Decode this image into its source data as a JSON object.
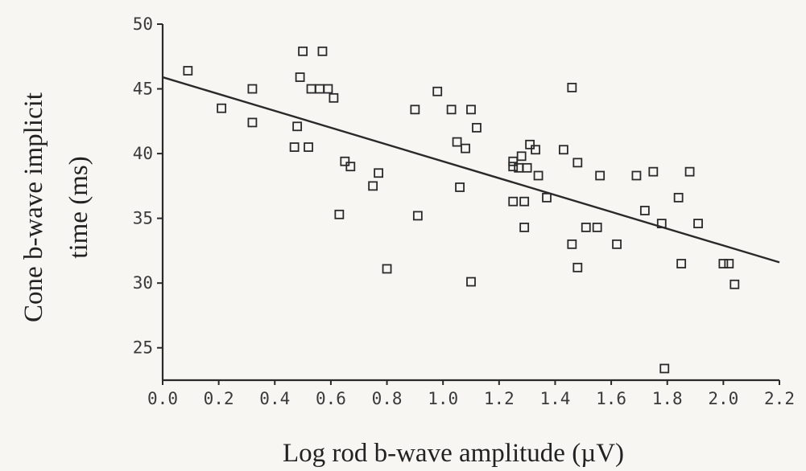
{
  "chart_data": {
    "type": "scatter",
    "xlabel": "Log rod b-wave amplitude (µV)",
    "ylabel": [
      "Cone b-wave implicit",
      "time (ms)"
    ],
    "xlim": [
      0.0,
      2.2
    ],
    "ylim": [
      22.5,
      50
    ],
    "xticks": [
      "0.0",
      "0.2",
      "0.4",
      "0.6",
      "0.8",
      "1.0",
      "1.2",
      "1.4",
      "1.6",
      "1.8",
      "2.0",
      "2.2"
    ],
    "yticks": [
      "25",
      "30",
      "35",
      "40",
      "45",
      "50"
    ],
    "grid": false,
    "legend": "none",
    "marker": "open-square",
    "colors": {
      "ink": "#2a2a2a",
      "background": "#f7f6f3"
    },
    "trendline": {
      "x": [
        0.0,
        2.2
      ],
      "y": [
        45.9,
        31.6
      ]
    },
    "points": [
      [
        0.09,
        46.4
      ],
      [
        0.21,
        43.5
      ],
      [
        0.32,
        45.0
      ],
      [
        0.32,
        42.4
      ],
      [
        0.47,
        40.5
      ],
      [
        0.48,
        42.1
      ],
      [
        0.49,
        45.9
      ],
      [
        0.5,
        47.9
      ],
      [
        0.52,
        40.5
      ],
      [
        0.53,
        45.0
      ],
      [
        0.56,
        45.0
      ],
      [
        0.57,
        47.9
      ],
      [
        0.59,
        45.0
      ],
      [
        0.61,
        44.3
      ],
      [
        0.63,
        35.3
      ],
      [
        0.65,
        39.4
      ],
      [
        0.67,
        39.0
      ],
      [
        0.75,
        37.5
      ],
      [
        0.77,
        38.5
      ],
      [
        0.8,
        31.1
      ],
      [
        0.9,
        43.4
      ],
      [
        0.91,
        35.2
      ],
      [
        0.98,
        44.8
      ],
      [
        1.03,
        43.4
      ],
      [
        1.05,
        40.9
      ],
      [
        1.06,
        37.4
      ],
      [
        1.08,
        40.4
      ],
      [
        1.1,
        43.4
      ],
      [
        1.1,
        30.1
      ],
      [
        1.12,
        42.0
      ],
      [
        1.25,
        39.4
      ],
      [
        1.25,
        39.0
      ],
      [
        1.25,
        36.3
      ],
      [
        1.27,
        38.9
      ],
      [
        1.28,
        39.8
      ],
      [
        1.29,
        36.3
      ],
      [
        1.29,
        34.3
      ],
      [
        1.3,
        38.9
      ],
      [
        1.31,
        40.7
      ],
      [
        1.33,
        40.3
      ],
      [
        1.34,
        38.3
      ],
      [
        1.37,
        36.6
      ],
      [
        1.43,
        40.3
      ],
      [
        1.46,
        33.0
      ],
      [
        1.46,
        45.1
      ],
      [
        1.48,
        39.3
      ],
      [
        1.48,
        31.2
      ],
      [
        1.51,
        34.3
      ],
      [
        1.55,
        34.3
      ],
      [
        1.56,
        38.3
      ],
      [
        1.62,
        33.0
      ],
      [
        1.69,
        38.3
      ],
      [
        1.72,
        35.6
      ],
      [
        1.75,
        38.6
      ],
      [
        1.78,
        34.6
      ],
      [
        1.79,
        23.4
      ],
      [
        1.84,
        36.6
      ],
      [
        1.85,
        31.5
      ],
      [
        1.88,
        38.6
      ],
      [
        1.91,
        34.6
      ],
      [
        2.0,
        31.5
      ],
      [
        2.02,
        31.5
      ],
      [
        2.04,
        29.9
      ]
    ]
  }
}
